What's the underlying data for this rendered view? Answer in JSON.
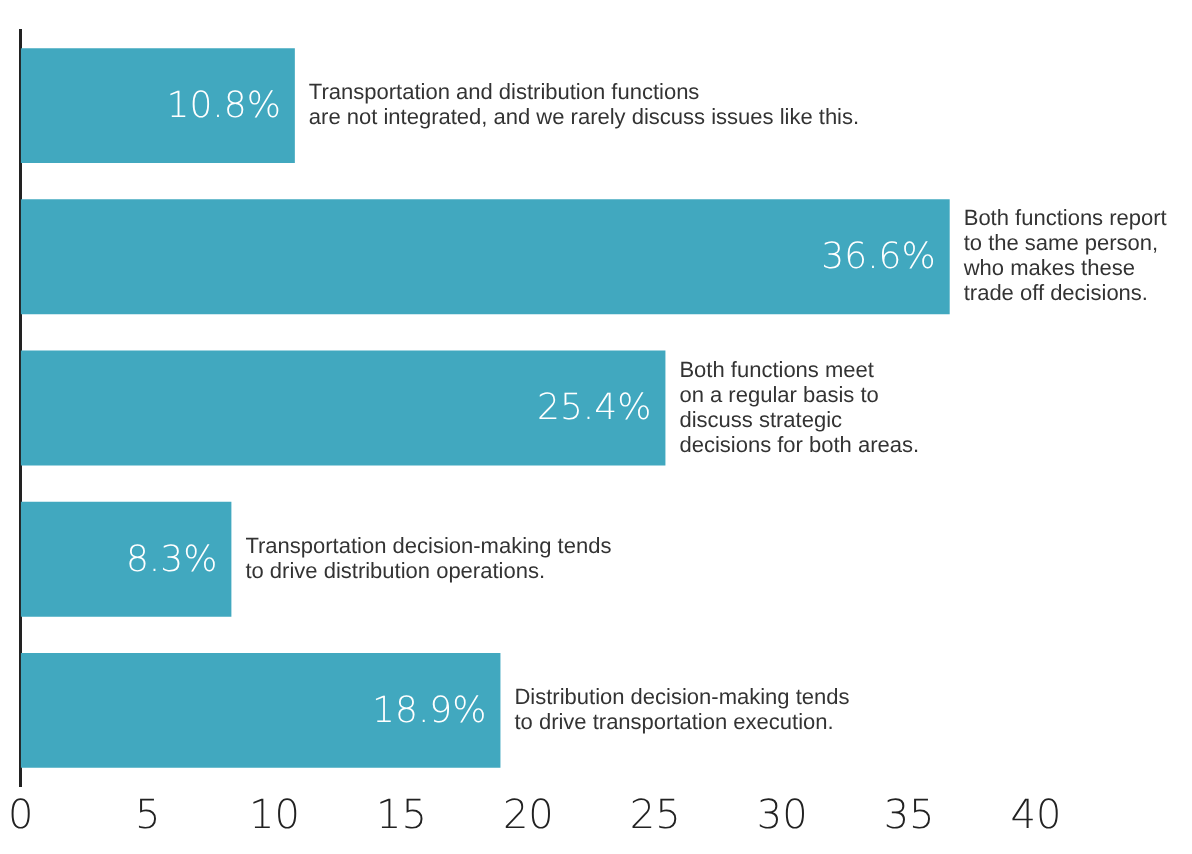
{
  "chart_data": {
    "type": "bar",
    "orientation": "horizontal",
    "categories": [
      "Transportation and distribution functions\nare not integrated, and we rarely discuss issues like this.",
      "Both functions report\nto the same person,\nwho makes these\ntrade off decisions.",
      "Both functions meet\non a regular basis to\ndiscuss strategic\ndecisions for both areas.",
      "Transportation decision-making tends\nto drive distribution operations.",
      "Distribution decision-making tends\nto drive transportation execution."
    ],
    "values": [
      10.8,
      36.6,
      25.4,
      8.3,
      18.9
    ],
    "value_labels": [
      "10.8%",
      "36.6%",
      "25.4%",
      "8.3%",
      "18.9%"
    ],
    "color": "#41a8bf",
    "xlim": [
      0,
      40
    ],
    "xticks": [
      0,
      5,
      10,
      15,
      20,
      25,
      30,
      35,
      40
    ],
    "grid": false,
    "tick_labels": "x"
  }
}
